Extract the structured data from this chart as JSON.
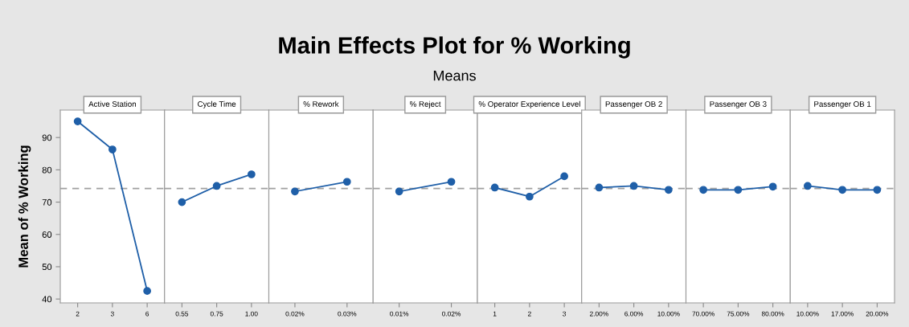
{
  "chart_data": [
    {
      "type": "other",
      "title": "Main Effects Plot for % Working",
      "subtitle": "Means"
    },
    {
      "type": "line",
      "title": "Active Station",
      "categories": [
        "2",
        "3",
        "6"
      ],
      "series": [
        {
          "color": "#1f5fa8",
          "values": [
            95,
            86.3,
            42.5
          ]
        }
      ],
      "ylabel": "Mean of % Working",
      "ylim": [
        38.8,
        98.5
      ],
      "yticks": [
        40,
        50,
        60,
        70,
        80,
        90
      ],
      "ref_lines": [
        {
          "axis": "y",
          "value": 74.2,
          "color": "#a0a0a0",
          "line_style": "dashed"
        }
      ],
      "marker": "circle",
      "grid": false
    },
    {
      "type": "line",
      "title": "Cycle Time",
      "categories": [
        "0.55",
        "0.75",
        "1.00"
      ],
      "series": [
        {
          "color": "#1f5fa8",
          "values": [
            70,
            75,
            78.6
          ]
        }
      ],
      "ylim": [
        38.8,
        98.5
      ],
      "tick_labels": "x",
      "ref_lines": [
        {
          "axis": "y",
          "value": 74.2,
          "color": "#a0a0a0",
          "line_style": "dashed"
        }
      ],
      "marker": "circle",
      "grid": false
    },
    {
      "type": "line",
      "title": "% Rework",
      "categories": [
        "0.02%",
        "0.03%"
      ],
      "series": [
        {
          "color": "#1f5fa8",
          "values": [
            73.3,
            76.3
          ]
        }
      ],
      "ylim": [
        38.8,
        98.5
      ],
      "tick_labels": "x",
      "ref_lines": [
        {
          "axis": "y",
          "value": 74.2,
          "color": "#a0a0a0",
          "line_style": "dashed"
        }
      ],
      "marker": "circle",
      "grid": false
    },
    {
      "type": "line",
      "title": "% Reject",
      "categories": [
        "0.01%",
        "0.02%"
      ],
      "series": [
        {
          "color": "#1f5fa8",
          "values": [
            73.3,
            76.3
          ]
        }
      ],
      "ylim": [
        38.8,
        98.5
      ],
      "tick_labels": "x",
      "ref_lines": [
        {
          "axis": "y",
          "value": 74.2,
          "color": "#a0a0a0",
          "line_style": "dashed"
        }
      ],
      "marker": "circle",
      "grid": false
    },
    {
      "type": "line",
      "title": "% Operator Experience Level",
      "categories": [
        "1",
        "2",
        "3"
      ],
      "series": [
        {
          "color": "#1f5fa8",
          "values": [
            74.5,
            71.7,
            78
          ]
        }
      ],
      "ylim": [
        38.8,
        98.5
      ],
      "tick_labels": "x",
      "ref_lines": [
        {
          "axis": "y",
          "value": 74.2,
          "color": "#a0a0a0",
          "line_style": "dashed"
        }
      ],
      "marker": "circle",
      "grid": false
    },
    {
      "type": "line",
      "title": "Passenger OB 2",
      "categories": [
        "2.00%",
        "6.00%",
        "10.00%"
      ],
      "series": [
        {
          "color": "#1f5fa8",
          "values": [
            74.5,
            75,
            73.8
          ]
        }
      ],
      "ylim": [
        38.8,
        98.5
      ],
      "tick_labels": "x",
      "ref_lines": [
        {
          "axis": "y",
          "value": 74.2,
          "color": "#a0a0a0",
          "line_style": "dashed"
        }
      ],
      "marker": "circle",
      "grid": false
    },
    {
      "type": "line",
      "title": "Passenger OB 3",
      "categories": [
        "70.00%",
        "75.00%",
        "80.00%"
      ],
      "series": [
        {
          "color": "#1f5fa8",
          "values": [
            73.8,
            73.8,
            74.8
          ]
        }
      ],
      "ylim": [
        38.8,
        98.5
      ],
      "tick_labels": "x",
      "ref_lines": [
        {
          "axis": "y",
          "value": 74.2,
          "color": "#a0a0a0",
          "line_style": "dashed"
        }
      ],
      "marker": "circle",
      "grid": false
    },
    {
      "type": "line",
      "title": "Passenger OB 1",
      "categories": [
        "10.00%",
        "17.00%",
        "20.00%"
      ],
      "series": [
        {
          "color": "#1f5fa8",
          "values": [
            75,
            73.8,
            73.8
          ]
        }
      ],
      "ylim": [
        38.8,
        98.5
      ],
      "tick_labels": "x",
      "ref_lines": [
        {
          "axis": "y",
          "value": 74.2,
          "color": "#a0a0a0",
          "line_style": "dashed"
        }
      ],
      "marker": "circle",
      "grid": false
    }
  ]
}
